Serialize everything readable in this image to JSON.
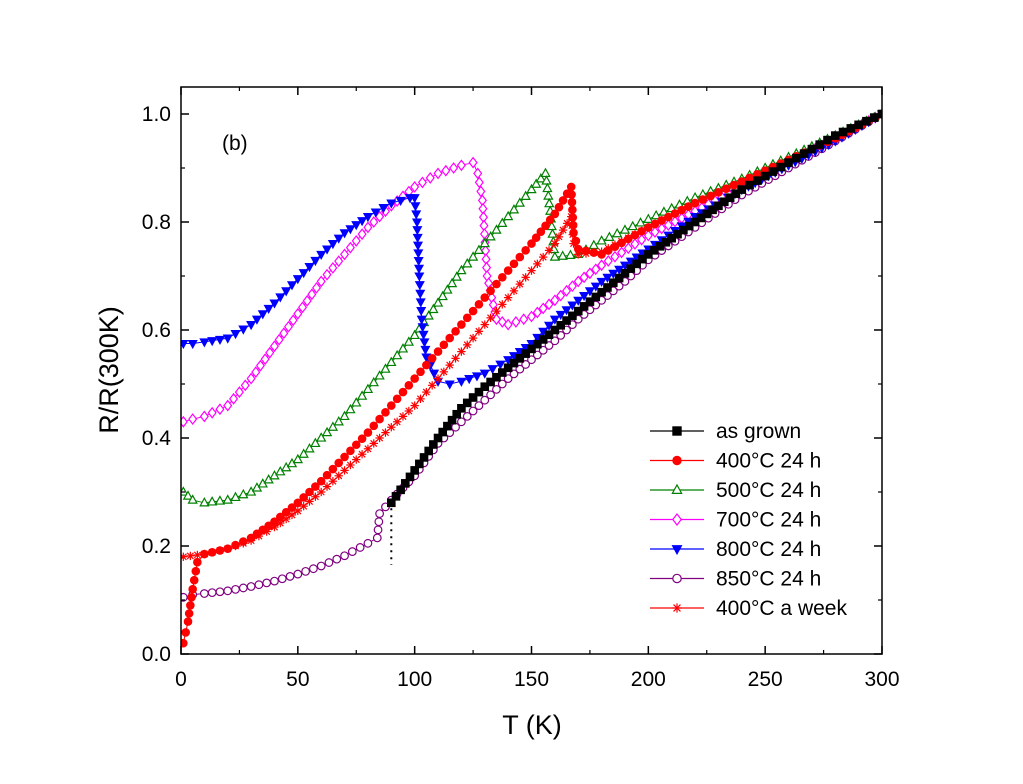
{
  "chart_data": {
    "type": "scatter",
    "panel_label": "(b)",
    "xlabel": "T (K)",
    "ylabel": "R/R(300K)",
    "xlim": [
      0,
      300
    ],
    "ylim": [
      0,
      1.05
    ],
    "x_ticks": [
      0,
      50,
      100,
      150,
      200,
      250,
      300
    ],
    "x_tick_labels": [
      "0",
      "50",
      "100",
      "150",
      "200",
      "250",
      "300"
    ],
    "y_ticks": [
      0.0,
      0.2,
      0.4,
      0.6,
      0.8,
      1.0
    ],
    "y_tick_labels": [
      "0.0",
      "0.2",
      "0.4",
      "0.6",
      "0.8",
      "1.0"
    ],
    "legend_position": "lower-right",
    "annotation": "dotted vertical marker near T = 90 K",
    "series": [
      {
        "name": "as grown",
        "color": "#000000",
        "marker": "square-filled",
        "points": [
          [
            90,
            0.28
          ],
          [
            100,
            0.34
          ],
          [
            110,
            0.4
          ],
          [
            120,
            0.455
          ],
          [
            130,
            0.495
          ],
          [
            140,
            0.53
          ],
          [
            150,
            0.565
          ],
          [
            160,
            0.6
          ],
          [
            170,
            0.635
          ],
          [
            180,
            0.67
          ],
          [
            190,
            0.705
          ],
          [
            200,
            0.74
          ],
          [
            210,
            0.77
          ],
          [
            220,
            0.8
          ],
          [
            230,
            0.83
          ],
          [
            240,
            0.86
          ],
          [
            250,
            0.885
          ],
          [
            260,
            0.91
          ],
          [
            270,
            0.935
          ],
          [
            280,
            0.96
          ],
          [
            290,
            0.98
          ],
          [
            300,
            1.0
          ]
        ]
      },
      {
        "name": "400°C 24 h",
        "color": "#ff0000",
        "marker": "circle-filled",
        "points": [
          [
            1,
            0.02
          ],
          [
            2,
            0.04
          ],
          [
            3,
            0.06
          ],
          [
            5,
            0.12
          ],
          [
            7,
            0.17
          ],
          [
            10,
            0.185
          ],
          [
            20,
            0.195
          ],
          [
            30,
            0.215
          ],
          [
            40,
            0.245
          ],
          [
            50,
            0.28
          ],
          [
            60,
            0.32
          ],
          [
            70,
            0.365
          ],
          [
            80,
            0.41
          ],
          [
            90,
            0.46
          ],
          [
            100,
            0.51
          ],
          [
            110,
            0.56
          ],
          [
            120,
            0.61
          ],
          [
            130,
            0.66
          ],
          [
            140,
            0.71
          ],
          [
            150,
            0.76
          ],
          [
            160,
            0.815
          ],
          [
            167,
            0.865
          ],
          [
            168,
            0.78
          ],
          [
            170,
            0.75
          ],
          [
            180,
            0.74
          ],
          [
            200,
            0.79
          ],
          [
            220,
            0.835
          ],
          [
            240,
            0.875
          ],
          [
            260,
            0.915
          ],
          [
            280,
            0.955
          ],
          [
            300,
            1.0
          ]
        ]
      },
      {
        "name": "500°C 24 h",
        "color": "#008000",
        "marker": "triangle-open",
        "points": [
          [
            1,
            0.3
          ],
          [
            5,
            0.285
          ],
          [
            10,
            0.28
          ],
          [
            20,
            0.285
          ],
          [
            30,
            0.3
          ],
          [
            40,
            0.33
          ],
          [
            50,
            0.36
          ],
          [
            60,
            0.4
          ],
          [
            70,
            0.44
          ],
          [
            80,
            0.49
          ],
          [
            90,
            0.54
          ],
          [
            100,
            0.59
          ],
          [
            110,
            0.65
          ],
          [
            120,
            0.71
          ],
          [
            130,
            0.76
          ],
          [
            140,
            0.81
          ],
          [
            150,
            0.86
          ],
          [
            156,
            0.89
          ],
          [
            158,
            0.82
          ],
          [
            160,
            0.735
          ],
          [
            170,
            0.74
          ],
          [
            180,
            0.765
          ],
          [
            200,
            0.805
          ],
          [
            220,
            0.845
          ],
          [
            240,
            0.88
          ],
          [
            260,
            0.92
          ],
          [
            280,
            0.96
          ],
          [
            300,
            1.0
          ]
        ]
      },
      {
        "name": "700°C 24 h",
        "color": "#ff00ff",
        "marker": "diamond-open",
        "points": [
          [
            1,
            0.43
          ],
          [
            5,
            0.435
          ],
          [
            10,
            0.44
          ],
          [
            20,
            0.46
          ],
          [
            30,
            0.51
          ],
          [
            40,
            0.57
          ],
          [
            50,
            0.63
          ],
          [
            60,
            0.69
          ],
          [
            70,
            0.74
          ],
          [
            80,
            0.79
          ],
          [
            90,
            0.83
          ],
          [
            100,
            0.865
          ],
          [
            110,
            0.89
          ],
          [
            120,
            0.905
          ],
          [
            125,
            0.91
          ],
          [
            127,
            0.89
          ],
          [
            129,
            0.84
          ],
          [
            131,
            0.7
          ],
          [
            135,
            0.62
          ],
          [
            140,
            0.61
          ],
          [
            150,
            0.625
          ],
          [
            160,
            0.655
          ],
          [
            170,
            0.69
          ],
          [
            180,
            0.72
          ],
          [
            200,
            0.775
          ],
          [
            220,
            0.82
          ],
          [
            240,
            0.865
          ],
          [
            260,
            0.91
          ],
          [
            280,
            0.955
          ],
          [
            300,
            1.0
          ]
        ]
      },
      {
        "name": "800°C 24 h",
        "color": "#0000ff",
        "marker": "triangle-down-filled",
        "points": [
          [
            1,
            0.575
          ],
          [
            5,
            0.575
          ],
          [
            10,
            0.578
          ],
          [
            20,
            0.585
          ],
          [
            30,
            0.61
          ],
          [
            40,
            0.65
          ],
          [
            50,
            0.695
          ],
          [
            60,
            0.74
          ],
          [
            70,
            0.78
          ],
          [
            80,
            0.81
          ],
          [
            90,
            0.835
          ],
          [
            98,
            0.845
          ],
          [
            100,
            0.845
          ],
          [
            101,
            0.8
          ],
          [
            102,
            0.7
          ],
          [
            103,
            0.62
          ],
          [
            105,
            0.55
          ],
          [
            110,
            0.505
          ],
          [
            115,
            0.5
          ],
          [
            120,
            0.505
          ],
          [
            130,
            0.52
          ],
          [
            140,
            0.545
          ],
          [
            150,
            0.575
          ],
          [
            160,
            0.62
          ],
          [
            170,
            0.655
          ],
          [
            180,
            0.69
          ],
          [
            190,
            0.72
          ],
          [
            200,
            0.75
          ],
          [
            220,
            0.81
          ],
          [
            240,
            0.86
          ],
          [
            260,
            0.905
          ],
          [
            280,
            0.95
          ],
          [
            300,
            1.0
          ]
        ]
      },
      {
        "name": "850°C 24 h",
        "color": "#800080",
        "marker": "circle-open",
        "points": [
          [
            1,
            0.105
          ],
          [
            5,
            0.11
          ],
          [
            10,
            0.112
          ],
          [
            20,
            0.117
          ],
          [
            30,
            0.125
          ],
          [
            40,
            0.135
          ],
          [
            50,
            0.148
          ],
          [
            60,
            0.163
          ],
          [
            70,
            0.182
          ],
          [
            80,
            0.205
          ],
          [
            84,
            0.215
          ],
          [
            85,
            0.26
          ],
          [
            90,
            0.285
          ],
          [
            100,
            0.33
          ],
          [
            110,
            0.39
          ],
          [
            120,
            0.43
          ],
          [
            130,
            0.47
          ],
          [
            140,
            0.51
          ],
          [
            150,
            0.545
          ],
          [
            160,
            0.58
          ],
          [
            170,
            0.62
          ],
          [
            180,
            0.655
          ],
          [
            190,
            0.69
          ],
          [
            200,
            0.73
          ],
          [
            220,
            0.79
          ],
          [
            240,
            0.85
          ],
          [
            260,
            0.9
          ],
          [
            280,
            0.95
          ],
          [
            300,
            1.0
          ]
        ]
      },
      {
        "name": "400°C a week",
        "color": "#ff0000",
        "marker": "star",
        "points": [
          [
            1,
            0.18
          ],
          [
            10,
            0.185
          ],
          [
            20,
            0.195
          ],
          [
            30,
            0.21
          ],
          [
            40,
            0.235
          ],
          [
            50,
            0.265
          ],
          [
            60,
            0.3
          ],
          [
            70,
            0.34
          ],
          [
            80,
            0.38
          ],
          [
            90,
            0.42
          ],
          [
            100,
            0.46
          ],
          [
            110,
            0.51
          ],
          [
            120,
            0.56
          ],
          [
            130,
            0.61
          ],
          [
            140,
            0.66
          ],
          [
            150,
            0.71
          ],
          [
            160,
            0.76
          ],
          [
            167,
            0.81
          ],
          [
            168,
            0.76
          ],
          [
            170,
            0.74
          ],
          [
            180,
            0.745
          ],
          [
            200,
            0.79
          ],
          [
            220,
            0.835
          ],
          [
            240,
            0.875
          ],
          [
            260,
            0.915
          ],
          [
            280,
            0.955
          ],
          [
            300,
            1.0
          ]
        ]
      }
    ]
  }
}
